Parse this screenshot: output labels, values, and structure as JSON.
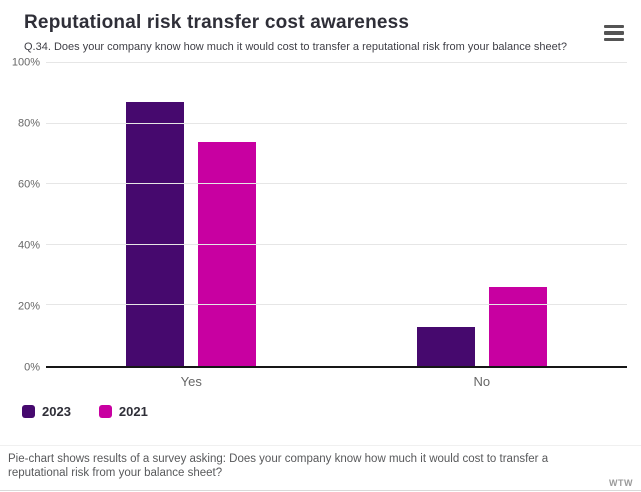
{
  "header": {
    "title": "Reputational risk transfer cost awareness",
    "subtitle": "Q.34. Does your company know how much it would cost to transfer a reputational risk from your balance sheet?",
    "menu_icon": "hamburger-icon"
  },
  "chart_data": {
    "type": "bar",
    "title": "Reputational risk transfer cost awareness",
    "subtitle": "Q.34. Does your company know how much it would cost to transfer a reputational risk from your balance sheet?",
    "categories": [
      "Yes",
      "No"
    ],
    "series": [
      {
        "name": "2023",
        "color": "#46096e",
        "values": [
          87,
          13
        ]
      },
      {
        "name": "2021",
        "color": "#c800a1",
        "values": [
          74,
          26
        ]
      }
    ],
    "xlabel": "",
    "ylabel": "",
    "ylim": [
      0,
      100
    ],
    "yticks": [
      0,
      20,
      40,
      60,
      80,
      100
    ],
    "ytick_suffix": "%",
    "grid": true,
    "legend_position": "bottom-left"
  },
  "footer": {
    "caption": "Pie-chart shows results of a survey asking: Does your company know how much it would cost to transfer a reputational risk from your balance sheet?",
    "credit": "WTW"
  },
  "colors": {
    "series_2023": "#46096e",
    "series_2021": "#c800a1",
    "gridline": "#e6e6e6",
    "axis_line": "#161616",
    "axis_label": "#666666",
    "title_text": "#2f2f38",
    "caption_text": "#58595b"
  }
}
